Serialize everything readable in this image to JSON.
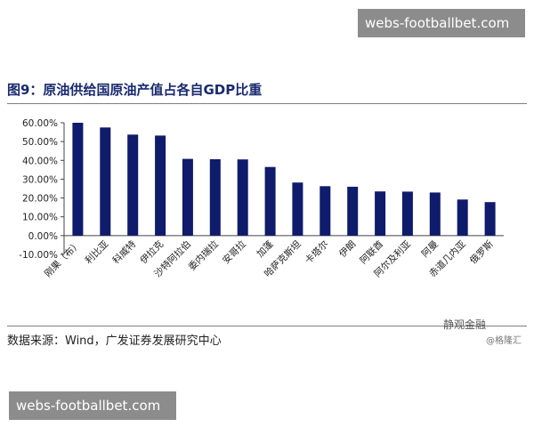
{
  "watermarks": {
    "top": "webs-footballbet.com",
    "bottom": "webs-footballbet.com"
  },
  "figure": {
    "title": "图9：原油供给国原油产值占各自GDP比重",
    "source": "数据来源：Wind，广发证券发展研究中心",
    "brand": "静观金融",
    "brand_sub": "@格隆汇"
  },
  "chart_data": {
    "type": "bar",
    "title": "",
    "xlabel": "",
    "ylabel": "",
    "categories": [
      "刚果（布）",
      "利比亚",
      "科威特",
      "伊拉克",
      "沙特阿拉伯",
      "委内瑞拉",
      "安哥拉",
      "加蓬",
      "哈萨克斯坦",
      "卡塔尔",
      "伊朗",
      "阿联酋",
      "阿尔及利亚",
      "阿曼",
      "赤道几内亚",
      "俄罗斯"
    ],
    "series": [
      {
        "values": [
          60.0,
          57.5,
          53.7,
          53.2,
          40.8,
          40.6,
          40.5,
          36.5,
          28.2,
          26.3,
          26.0,
          23.5,
          23.4,
          22.9,
          19.2,
          17.8
        ]
      }
    ],
    "ylim": [
      -10,
      60
    ],
    "yticks": [
      "60.00%",
      "50.00%",
      "40.00%",
      "30.00%",
      "20.00%",
      "10.00%",
      "0.00%",
      "-10.00%"
    ],
    "ytick_values": [
      60,
      50,
      40,
      30,
      20,
      10,
      0,
      -10
    ],
    "bar_color": "#0f1b6b",
    "grid": false,
    "legend": "none"
  }
}
